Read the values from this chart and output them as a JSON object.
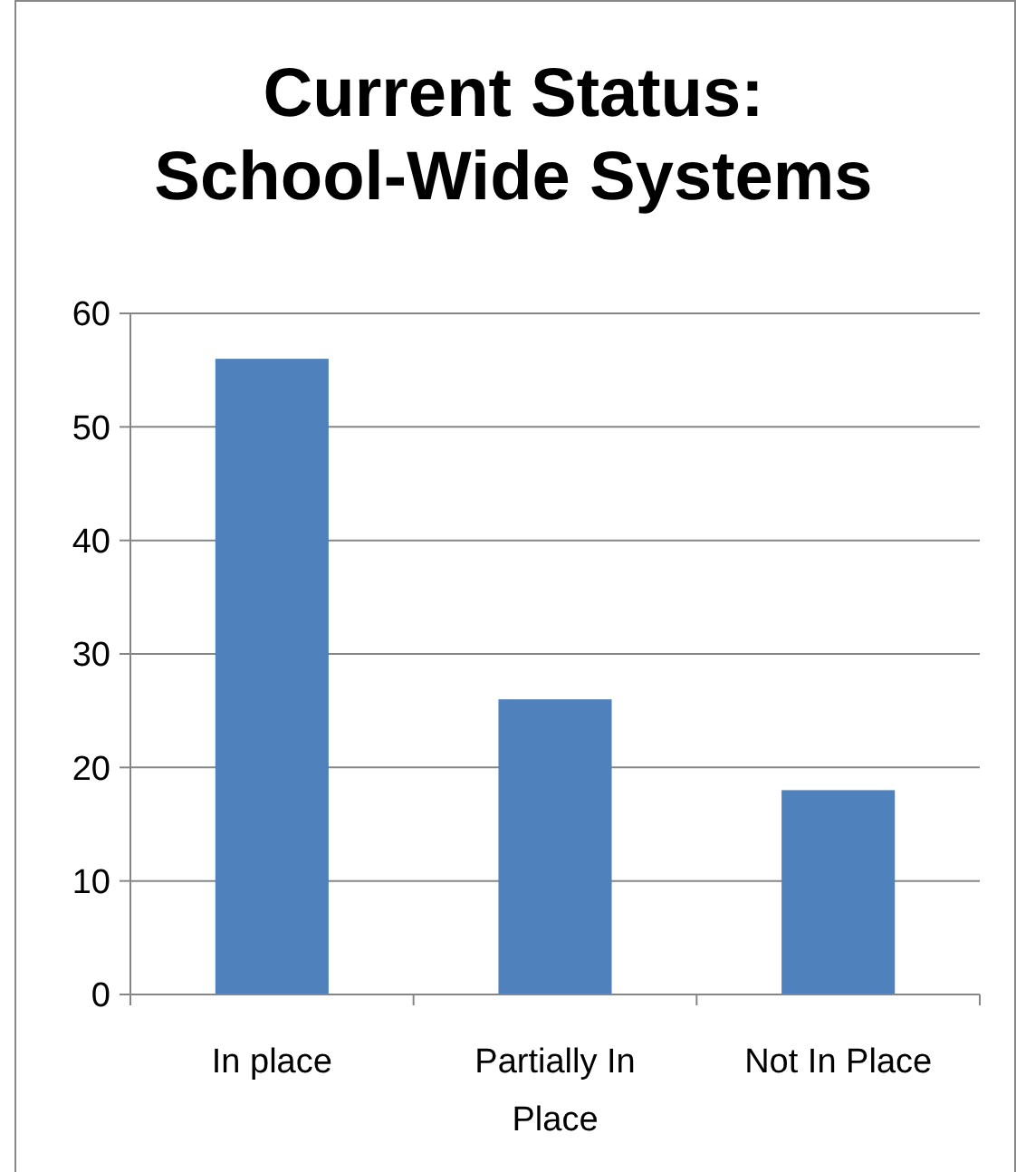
{
  "chart_data": {
    "type": "bar",
    "title": "Current Status: School-Wide Systems",
    "categories": [
      "In place",
      "Partially In Place",
      "Not In Place"
    ],
    "values": [
      56,
      26,
      18
    ],
    "color": "#4f81bd",
    "ylim": [
      0,
      60
    ],
    "yticks": [
      0,
      10,
      20,
      30,
      40,
      50,
      60
    ],
    "grid": "y"
  }
}
